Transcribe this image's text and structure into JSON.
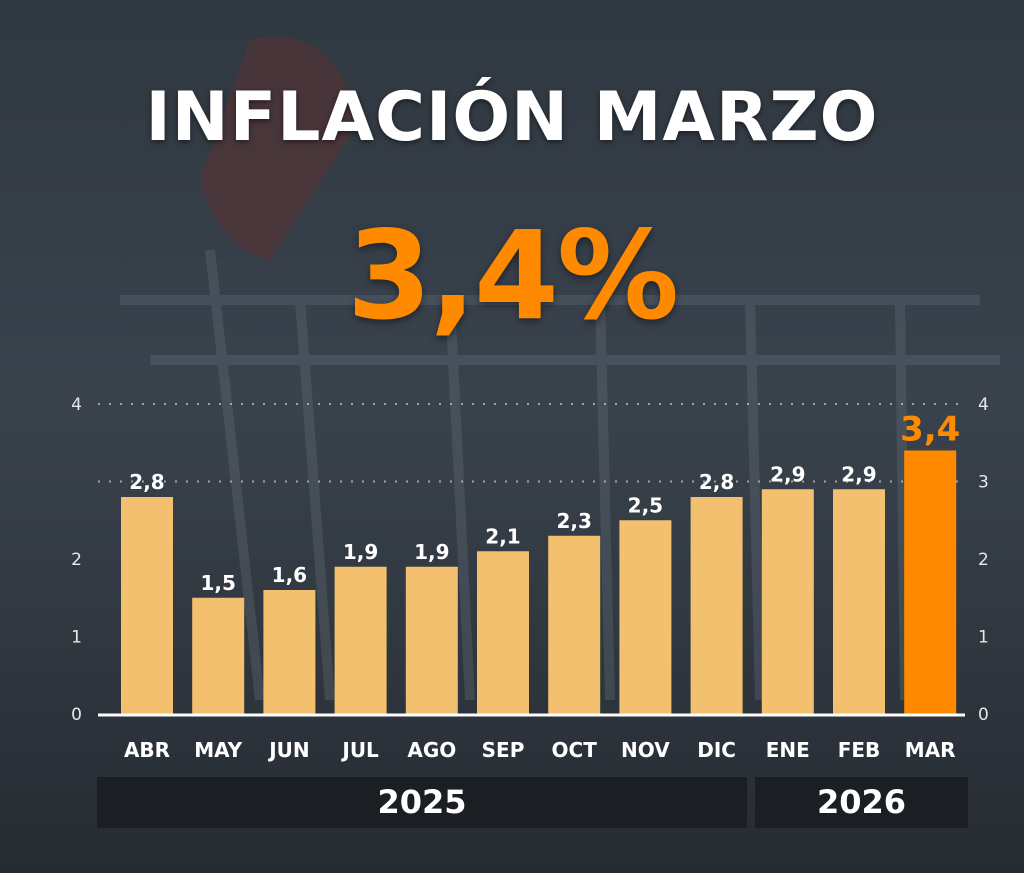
{
  "title": "INFLACIÓN MARZO",
  "headline_value": "3,4%",
  "colors": {
    "bar": "#f2c06e",
    "highlight": "#ff8a00",
    "text": "#ffffff",
    "band": "#1b1f23"
  },
  "year_groups": [
    "2025",
    "2026"
  ],
  "chart_data": {
    "type": "bar",
    "title": "INFLACIÓN MARZO",
    "xlabel": "",
    "ylabel": "",
    "categories": [
      "ABR",
      "MAY",
      "JUN",
      "JUL",
      "AGO",
      "SEP",
      "OCT",
      "NOV",
      "DIC",
      "ENE",
      "FEB",
      "MAR"
    ],
    "values": [
      2.8,
      1.5,
      1.6,
      1.9,
      1.9,
      2.1,
      2.3,
      2.5,
      2.8,
      2.9,
      2.9,
      3.4
    ],
    "value_labels": [
      "2,8",
      "1,5",
      "1,6",
      "1,9",
      "1,9",
      "2,1",
      "2,3",
      "2,5",
      "2,8",
      "2,9",
      "2,9",
      "3,4"
    ],
    "highlight_index": 11,
    "ylim": [
      0,
      4
    ],
    "left_ticks": [
      "0",
      "1",
      "2",
      "4"
    ],
    "right_ticks": [
      "0",
      "1",
      "2",
      "3",
      "4"
    ],
    "grid": true
  }
}
